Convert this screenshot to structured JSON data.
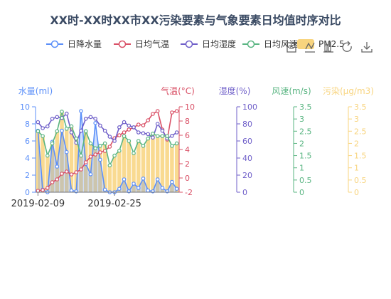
{
  "chart_data": {
    "type": "line",
    "title": "XX时-XX时XX市XX污染要素与气象要素日均值时序对比",
    "legend": {
      "placement": "top-right",
      "items": [
        {
          "name": "日降水量",
          "color": "#5b8ff9"
        },
        {
          "name": "日均气温",
          "color": "#d95066"
        },
        {
          "name": "日均湿度",
          "color": "#6f5fc9"
        },
        {
          "name": "日均风速",
          "color": "#5ab582"
        },
        {
          "name": "PM2.5",
          "color": "#f8d47e"
        }
      ]
    },
    "toolbox": [
      "data-view-icon",
      "line-chart-icon",
      "bar-chart-icon",
      "restore-icon",
      "download-icon"
    ],
    "x_tick_labels": [
      {
        "index": 0,
        "label": "2019-02-09"
      },
      {
        "index": 16,
        "label": "2019-02-25"
      }
    ],
    "axes": [
      {
        "id": "precip",
        "name": "水量(ml)",
        "color": "#5b8ff9",
        "min": 0,
        "max": 10,
        "ticks": [
          "0",
          "2",
          "4",
          "6",
          "8",
          "10"
        ]
      },
      {
        "id": "temp",
        "name": "气温(°C)",
        "color": "#d95066",
        "min": -2,
        "max": 10,
        "ticks": [
          "-2",
          "0",
          "2",
          "4",
          "6",
          "8",
          "10"
        ]
      },
      {
        "id": "humidity",
        "name": "湿度(%)",
        "color": "#6f5fc9",
        "min": 0,
        "max": 100,
        "ticks": [
          "0",
          "20",
          "40",
          "60",
          "80",
          "100"
        ]
      },
      {
        "id": "wind",
        "name": "风速(m/s)",
        "color": "#5ab582",
        "min": 0,
        "max": 3.5,
        "ticks": [
          "0",
          "0.5",
          "1",
          "1.5",
          "2",
          "2.5",
          "3",
          "3.5"
        ]
      },
      {
        "id": "pm",
        "name": "污染(μg/m3)",
        "color": "#f8d47e",
        "min": 0,
        "max": 3.5,
        "ticks": [
          "0",
          "0.5",
          "1",
          "1.5",
          "2",
          "2.5",
          "3",
          "3.5"
        ]
      }
    ],
    "series": [
      {
        "name": "日降水量",
        "axis": "precip",
        "color": "#5b8ff9",
        "kind": "line",
        "values": [
          7.2,
          0.3,
          0.0,
          5.9,
          3.0,
          7.2,
          4.7,
          0.2,
          0.1,
          9.5,
          3.3,
          2.1,
          8.1,
          3.8,
          0.3,
          0.0,
          0.0,
          0.4,
          1.5,
          0.1,
          1.0,
          0.5,
          1.6,
          0.2,
          0.1,
          1.5,
          0.5,
          0.1,
          1.2,
          0.4
        ]
      },
      {
        "name": "日均气温",
        "axis": "temp",
        "color": "#d95066",
        "kind": "line",
        "values": [
          -1.8,
          -1.7,
          -1.4,
          -0.6,
          -0.2,
          0.6,
          0.9,
          0.5,
          0.8,
          1.2,
          2.2,
          3.0,
          3.3,
          3.6,
          3.8,
          4.4,
          5.6,
          6.0,
          6.4,
          6.8,
          7.1,
          7.5,
          7.4,
          8.1,
          9.0,
          9.4,
          6.8,
          5.4,
          9.2,
          9.4
        ]
      },
      {
        "name": "日均湿度",
        "axis": "humidity",
        "color": "#6f5fc9",
        "kind": "line",
        "values": [
          82,
          75,
          77,
          86,
          88,
          87,
          92,
          70,
          58,
          72,
          86,
          88,
          86,
          78,
          72,
          65,
          60,
          76,
          82,
          78,
          76,
          70,
          69,
          68,
          64,
          80,
          72,
          63,
          66,
          70
        ]
      },
      {
        "name": "日均风速",
        "axis": "wind",
        "color": "#5ab582",
        "kind": "line",
        "values": [
          2.5,
          2.3,
          1.5,
          2.0,
          2.5,
          3.3,
          2.6,
          2.7,
          2.2,
          1.5,
          2.5,
          2.0,
          1.8,
          1.9,
          2.0,
          1.1,
          1.5,
          1.7,
          2.3,
          2.1,
          1.6,
          2.1,
          1.9,
          2.2,
          2.4,
          2.3,
          2.3,
          2.3,
          1.9,
          2.0
        ]
      },
      {
        "name": "PM2.5",
        "axis": "pm",
        "color": "#f8d47e",
        "kind": "bar",
        "values": [
          2.5,
          2.3,
          1.5,
          2.0,
          2.5,
          3.3,
          2.6,
          2.7,
          2.2,
          1.5,
          2.5,
          2.0,
          1.8,
          1.9,
          2.0,
          1.1,
          1.5,
          1.7,
          2.3,
          2.1,
          1.6,
          2.1,
          1.9,
          2.2,
          2.4,
          2.3,
          2.3,
          2.3,
          1.9,
          2.0
        ]
      }
    ]
  }
}
